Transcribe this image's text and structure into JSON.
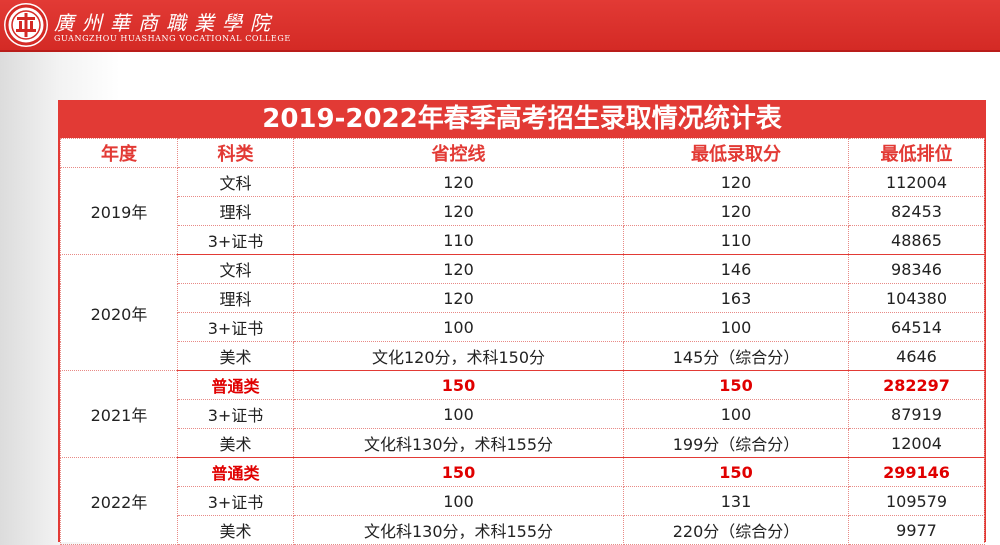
{
  "header": {
    "logo_cn": "廣州華商職業學院",
    "logo_en": "GUANGZHOU HUASHANG VOCATIONAL COLLEGE",
    "logo_icon": "college-emblem-icon",
    "bar_color": "#d42a25"
  },
  "table": {
    "title": "2019-2022年春季高考招生录取情况统计表",
    "columns": [
      "年度",
      "科类",
      "省控线",
      "最低录取分",
      "最低排位"
    ],
    "accent_color": "#e23a35",
    "highlight_color": "#e00000",
    "groups": [
      {
        "year": "2019年",
        "rows": [
          {
            "type": "文科",
            "line": "120",
            "min_score": "120",
            "min_rank": "112004",
            "highlight": false
          },
          {
            "type": "理科",
            "line": "120",
            "min_score": "120",
            "min_rank": "82453",
            "highlight": false
          },
          {
            "type": "3+证书",
            "line": "110",
            "min_score": "110",
            "min_rank": "48865",
            "highlight": false
          }
        ]
      },
      {
        "year": "2020年",
        "rows": [
          {
            "type": "文科",
            "line": "120",
            "min_score": "146",
            "min_rank": "98346",
            "highlight": false
          },
          {
            "type": "理科",
            "line": "120",
            "min_score": "163",
            "min_rank": "104380",
            "highlight": false
          },
          {
            "type": "3+证书",
            "line": "100",
            "min_score": "100",
            "min_rank": "64514",
            "highlight": false
          },
          {
            "type": "美术",
            "line": "文化120分，术科150分",
            "min_score": "145分（综合分）",
            "min_rank": "4646",
            "highlight": false
          }
        ]
      },
      {
        "year": "2021年",
        "rows": [
          {
            "type": "普通类",
            "line": "150",
            "min_score": "150",
            "min_rank": "282297",
            "highlight": true
          },
          {
            "type": "3+证书",
            "line": "100",
            "min_score": "100",
            "min_rank": "87919",
            "highlight": false
          },
          {
            "type": "美术",
            "line": "文化科130分，术科155分",
            "min_score": "199分（综合分）",
            "min_rank": "12004",
            "highlight": false
          }
        ]
      },
      {
        "year": "2022年",
        "rows": [
          {
            "type": "普通类",
            "line": "150",
            "min_score": "150",
            "min_rank": "299146",
            "highlight": true
          },
          {
            "type": "3+证书",
            "line": "100",
            "min_score": "131",
            "min_rank": "109579",
            "highlight": false
          },
          {
            "type": "美术",
            "line": "文化科130分，术科155分",
            "min_score": "220分（综合分）",
            "min_rank": "9977",
            "highlight": false
          }
        ]
      }
    ]
  }
}
